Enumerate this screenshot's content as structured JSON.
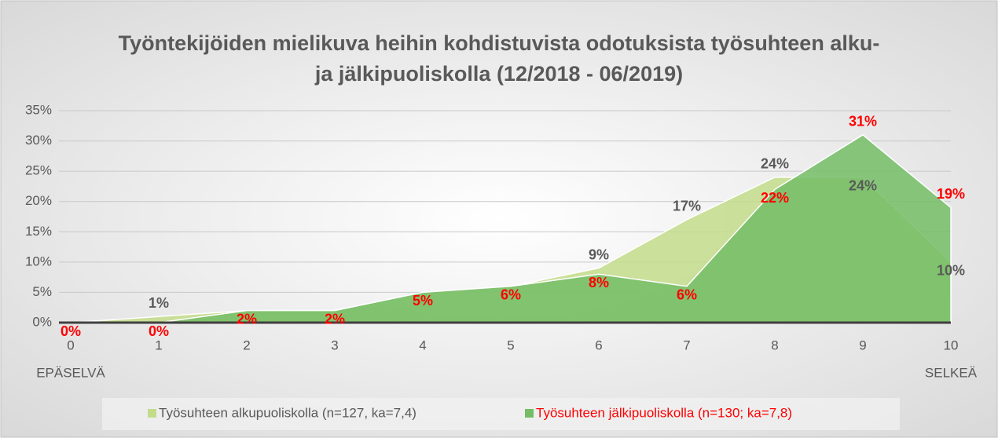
{
  "chart_data": {
    "type": "area",
    "title": "Työntekijöiden mielikuva heihin kohdistuvista odotuksista työsuhteen alku- ja jälkipuoliskolla (12/2018 - 06/2019)",
    "x": [
      0,
      1,
      2,
      3,
      4,
      5,
      6,
      7,
      8,
      9,
      10
    ],
    "xlim": [
      0,
      10
    ],
    "xticks": [
      0,
      1,
      2,
      3,
      4,
      5,
      6,
      7,
      8,
      9,
      10
    ],
    "annotations": [
      "EPÄSELVÄ",
      "SELKEÄ"
    ],
    "ylim": [
      0,
      35
    ],
    "yticks": [
      {
        "value": 0,
        "label": "0%"
      },
      {
        "value": 5,
        "label": "5%"
      },
      {
        "value": 10,
        "label": "10%"
      },
      {
        "value": 15,
        "label": "15%"
      },
      {
        "value": 20,
        "label": "20%"
      },
      {
        "value": 25,
        "label": "25%"
      },
      {
        "value": 30,
        "label": "30%"
      },
      {
        "value": 35,
        "label": "35%"
      }
    ],
    "grid": true,
    "legend": "bottom",
    "series": [
      {
        "name": "Työsuhteen alkupuoliskolla (n=127, ka=7,4)",
        "color": "#c3dc8a",
        "label_color": "#595959",
        "values": [
          0,
          1,
          2,
          2,
          5,
          6,
          9,
          17,
          24,
          24,
          10
        ],
        "value_labels": [
          null,
          "1%",
          null,
          null,
          null,
          null,
          "9%",
          "17%",
          "24%",
          "24%",
          "10%"
        ]
      },
      {
        "name": "Työsuhteen jälkipuoliskolla (n=130; ka=7,8)",
        "color": "#74bd66",
        "label_color": "#ff0000",
        "values": [
          0,
          0,
          2,
          2,
          5,
          6,
          8,
          6,
          22,
          31,
          19
        ],
        "value_labels": [
          "0%",
          "0%",
          "2%",
          "2%",
          "5%",
          "6%",
          "8%",
          "6%",
          "22%",
          "31%",
          "19%"
        ]
      }
    ]
  }
}
